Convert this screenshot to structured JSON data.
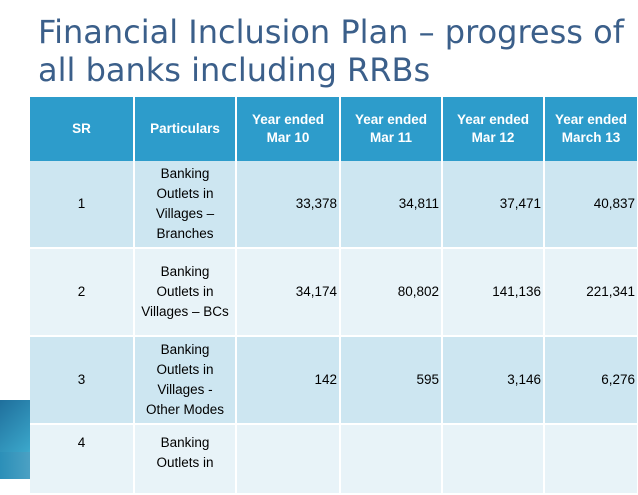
{
  "title": "Financial Inclusion Plan – progress of all banks including RRBs",
  "table": {
    "headers": [
      "SR",
      "Particulars",
      "Year ended Mar 10",
      "Year ended Mar 11",
      "Year ended Mar 12",
      "Year ended March 13"
    ],
    "rows": [
      {
        "sr": "1",
        "particulars": "Banking Outlets in Villages – Branches",
        "values": [
          "33,378",
          "34,811",
          "37,471",
          "40,837"
        ]
      },
      {
        "sr": "2",
        "particulars": "Banking Outlets in Villages – BCs",
        "values": [
          "34,174",
          "80,802",
          "141,136",
          "221,341"
        ]
      },
      {
        "sr": "3",
        "particulars": "Banking Outlets in Villages - Other Modes",
        "values": [
          "142",
          "595",
          "3,146",
          "6,276"
        ]
      },
      {
        "sr": "4",
        "particulars": "Banking Outlets in",
        "values": [
          "",
          "",
          "",
          ""
        ]
      }
    ]
  },
  "colors": {
    "header_bg": "#2d9ccb",
    "row_odd": "#cde6f1",
    "row_even": "#e8f3f8",
    "title": "#3b5f8a"
  }
}
